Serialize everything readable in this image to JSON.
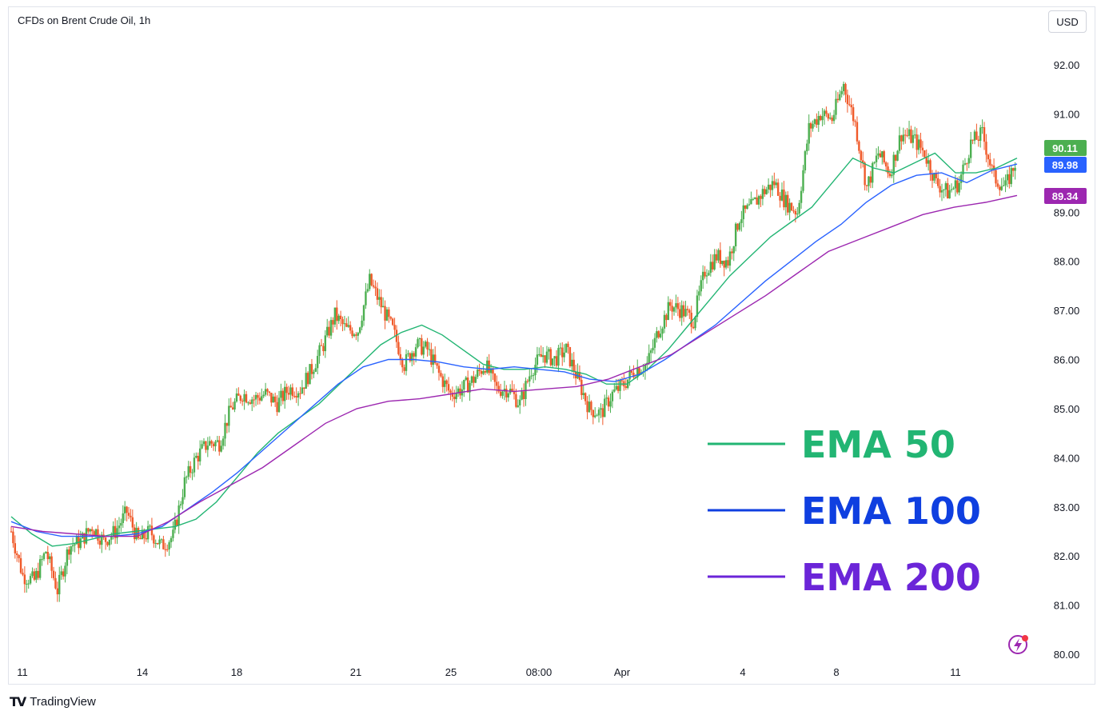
{
  "header": {
    "title": "CFDs on Brent Crude Oil, 1h",
    "currency": "USD"
  },
  "footer": {
    "brand": "TradingView"
  },
  "colors": {
    "up": "#26a69a",
    "up_candle": "#4caf50",
    "down_candle": "#f05a2a",
    "ema50": "#22b573",
    "ema100": "#2962ff",
    "ema200": "#9c27b0",
    "badge_price": "#4caf50",
    "badge_ema100": "#2962ff",
    "badge_ema200": "#9c27b0"
  },
  "chart_data": {
    "type": "line",
    "title": "CFDs on Brent Crude Oil, 1h",
    "currency": "USD",
    "ylim": [
      80.0,
      92.5
    ],
    "y_ticks": [
      "92.00",
      "91.00",
      "90.00",
      "89.00",
      "88.00",
      "87.00",
      "86.00",
      "85.00",
      "84.00",
      "83.00",
      "82.00",
      "81.00",
      "80.00"
    ],
    "x_ticks": [
      "11",
      "14",
      "18",
      "21",
      "25",
      "08:00",
      "Apr",
      "4",
      "8",
      "11"
    ],
    "price_badges": [
      {
        "label": "90.11",
        "value": 90.11,
        "color": "#4caf50"
      },
      {
        "label": "89.98",
        "value": 89.98,
        "color": "#2962ff"
      },
      {
        "label": "89.34",
        "value": 89.34,
        "color": "#9c27b0"
      }
    ],
    "price_series": [
      82.5,
      81.6,
      81.5,
      82.1,
      81.3,
      82.2,
      82.3,
      82.6,
      82.3,
      82.5,
      82.9,
      82.3,
      82.5,
      82.2,
      82.4,
      83.5,
      84.0,
      84.3,
      84.3,
      85.0,
      85.3,
      85.2,
      85.3,
      85.1,
      85.4,
      85.4,
      85.8,
      86.3,
      86.9,
      86.6,
      86.6,
      87.6,
      87.1,
      86.6,
      85.9,
      86.3,
      86.2,
      85.7,
      85.3,
      85.4,
      85.6,
      85.9,
      85.4,
      85.4,
      85.1,
      85.8,
      86.1,
      86.0,
      86.2,
      85.6,
      85.0,
      84.9,
      85.3,
      85.5,
      85.8,
      85.9,
      86.6,
      87.1,
      87.0,
      86.8,
      87.8,
      88.1,
      88.0,
      88.9,
      89.1,
      89.4,
      89.6,
      89.2,
      89.0,
      90.7,
      91.0,
      90.9,
      91.6,
      90.8,
      89.5,
      90.2,
      89.8,
      90.6,
      90.5,
      90.2,
      89.6,
      89.4,
      89.6,
      90.4,
      90.6,
      89.7,
      89.5,
      90.11
    ],
    "series": [
      {
        "name": "EMA 50",
        "color": "#22b573",
        "values": [
          82.8,
          82.45,
          82.2,
          82.25,
          82.35,
          82.45,
          82.5,
          82.55,
          82.6,
          82.75,
          83.1,
          83.6,
          84.1,
          84.5,
          84.8,
          85.1,
          85.5,
          85.9,
          86.3,
          86.55,
          86.7,
          86.5,
          86.2,
          85.9,
          85.8,
          85.8,
          85.85,
          85.8,
          85.7,
          85.5,
          85.5,
          85.8,
          86.2,
          86.7,
          87.2,
          87.7,
          88.1,
          88.5,
          88.8,
          89.1,
          89.6,
          90.1,
          89.9,
          89.8,
          90.0,
          90.2,
          89.8,
          89.8,
          89.9,
          90.1
        ]
      },
      {
        "name": "EMA 100",
        "color": "#2962ff",
        "values": [
          82.7,
          82.5,
          82.4,
          82.4,
          82.4,
          82.45,
          82.6,
          82.95,
          83.3,
          83.7,
          84.15,
          84.6,
          85.05,
          85.5,
          85.85,
          86.0,
          86.0,
          85.95,
          85.85,
          85.8,
          85.85,
          85.8,
          85.75,
          85.6,
          85.55,
          85.7,
          86.0,
          86.35,
          86.7,
          87.15,
          87.6,
          88.0,
          88.4,
          88.75,
          89.2,
          89.55,
          89.75,
          89.8,
          89.6,
          89.85,
          89.98
        ]
      },
      {
        "name": "EMA 200",
        "color": "#9c27b0",
        "values": [
          82.6,
          82.5,
          82.45,
          82.4,
          82.4,
          82.7,
          83.1,
          83.45,
          83.8,
          84.25,
          84.7,
          85.0,
          85.15,
          85.2,
          85.3,
          85.4,
          85.35,
          85.4,
          85.45,
          85.6,
          85.85,
          86.1,
          86.5,
          86.9,
          87.3,
          87.75,
          88.2,
          88.45,
          88.7,
          88.95,
          89.1,
          89.2,
          89.34
        ]
      }
    ]
  },
  "legend": [
    {
      "label": "EMA 50",
      "color": "#22b573"
    },
    {
      "label": "EMA 100",
      "color": "#0f3fe0"
    },
    {
      "label": "EMA 200",
      "color": "#6b25d8"
    }
  ]
}
